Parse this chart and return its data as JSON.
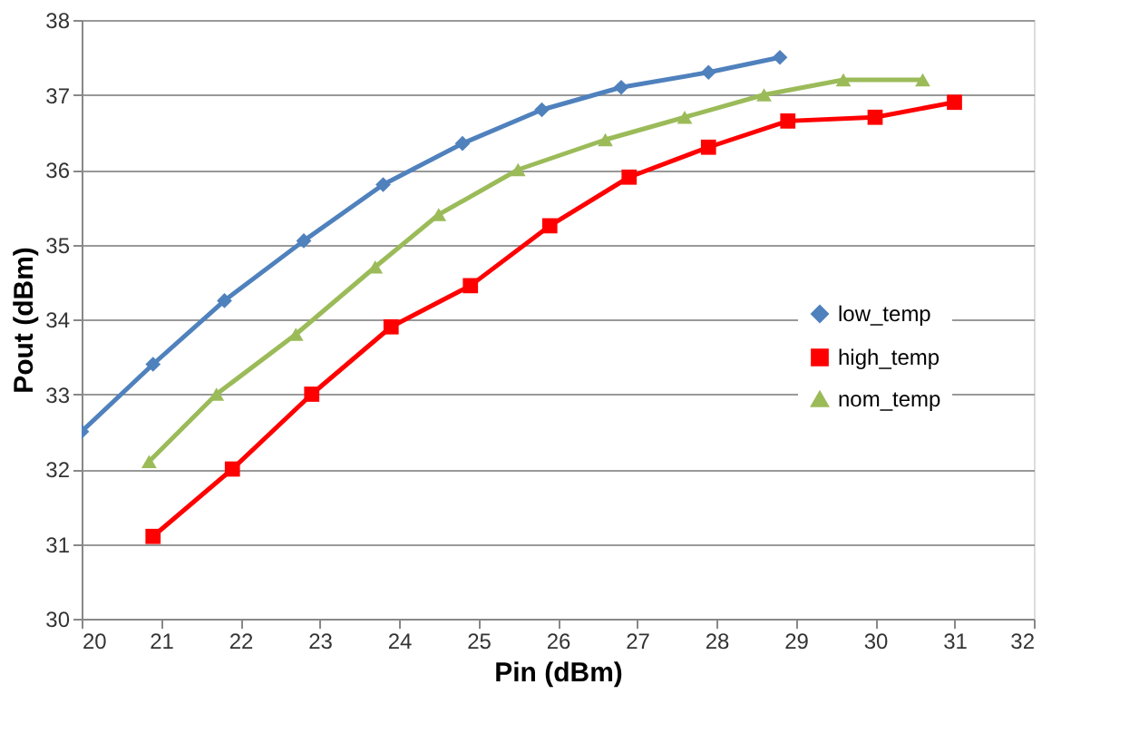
{
  "chart_data": {
    "type": "line",
    "xlabel": "Pin (dBm)",
    "ylabel": "Pout (dBm)",
    "xlim": [
      20,
      32
    ],
    "xticks": [
      20,
      21,
      22,
      23,
      24,
      25,
      26,
      27,
      28,
      29,
      30,
      31,
      32
    ],
    "ylim": [
      30,
      38
    ],
    "yticks": [
      30,
      31,
      32,
      33,
      34,
      35,
      36,
      37,
      38
    ],
    "grid": "y",
    "legend": "right",
    "series": [
      {
        "name": "low_temp",
        "color": "#4f81bd",
        "marker": "diamond",
        "x": [
          20,
          20.9,
          21.8,
          22.8,
          23.8,
          24.8,
          25.8,
          26.8,
          27.9,
          28.8
        ],
        "values": [
          32.5,
          33.4,
          34.25,
          35.05,
          35.8,
          36.35,
          36.8,
          37.1,
          37.3,
          37.5
        ]
      },
      {
        "name": "high_temp",
        "color": "#ff0000",
        "marker": "square",
        "x": [
          20.9,
          21.9,
          22.9,
          23.9,
          24.9,
          25.9,
          26.9,
          27.9,
          28.9,
          30,
          31
        ],
        "values": [
          31.1,
          32.0,
          33.0,
          33.9,
          34.45,
          35.25,
          35.9,
          36.3,
          36.65,
          36.7,
          36.9
        ]
      },
      {
        "name": "nom_temp",
        "color": "#9bbb59",
        "marker": "triangle",
        "x": [
          20.85,
          21.7,
          22.7,
          23.7,
          24.5,
          25.5,
          26.6,
          27.6,
          28.6,
          29.6,
          30.6
        ],
        "values": [
          32.1,
          33.0,
          33.8,
          34.7,
          35.4,
          36.0,
          36.4,
          36.7,
          37.0,
          37.2,
          37.2
        ]
      }
    ]
  }
}
